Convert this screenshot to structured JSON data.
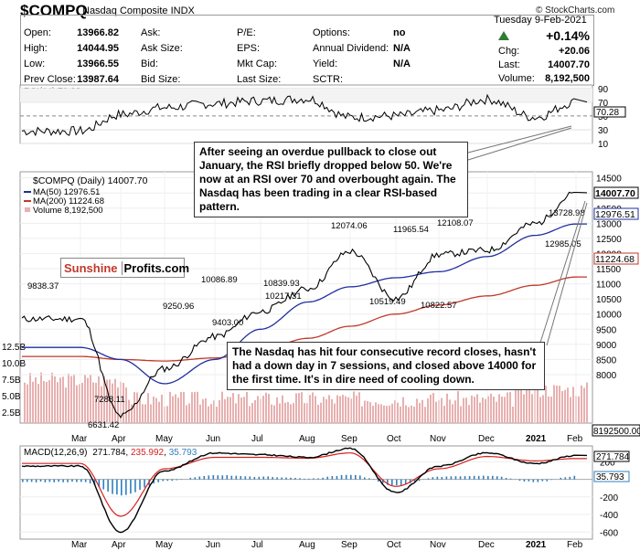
{
  "header": {
    "symbol": "$COMPQ",
    "name": "Nasdaq Composite INDX",
    "copyright": "© StockCharts.com",
    "date": "Tuesday  9-Feb-2021"
  },
  "quote": {
    "open_label": "Open:",
    "open": "13966.82",
    "high_label": "High:",
    "high": "14044.95",
    "low_label": "Low:",
    "low": "13966.55",
    "prev_label": "Prev Close:",
    "prev": "13987.64",
    "ask_label": "Ask:",
    "asksize_label": "Ask Size:",
    "bid_label": "Bid:",
    "bidsize_label": "Bid Size:",
    "pe_label": "P/E:",
    "eps_label": "EPS:",
    "mktcap_label": "Mkt Cap:",
    "lastsize_label": "Last Size:",
    "options_label": "Options:",
    "options": "no",
    "div_label": "Annual Dividend:",
    "div": "N/A",
    "yield_label": "Yield:",
    "yield": "N/A",
    "sctr_label": "SCTR:",
    "pct": "+0.14%",
    "chg_label": "Chg:",
    "chg": "+20.06",
    "last_label": "Last:",
    "last": "14007.70",
    "vol_label": "Volume:",
    "volume": "8,192,500"
  },
  "annotations": {
    "rsi_note": "After seeing an overdue pullback to close out January, the RSI briefly dropped below 50. We're now at an RSI over 70 and overbought again. The Nasdaq has been trading in a clear RSI-based pattern.",
    "price_note": "The Nasdaq has hit four consecutive record closes, hasn't had a down day in 7 sessions, and closed above 14000 for the first time. It's in dire need of cooling down.",
    "logo_a": "Sunshine",
    "logo_b": "Profits.com"
  },
  "colors": {
    "price": "#000000",
    "ma50": "#1f2fa0",
    "ma200": "#c0392b",
    "rsi": "#000000",
    "macd": "#000000",
    "signal": "#d62020",
    "histogram": "#2f7fbf",
    "volume": "#e8b0b0",
    "up_arrow": "#2e7d32"
  },
  "chart_data": [
    {
      "type": "line",
      "title": "RSI(14) 70.28",
      "x": [
        "Mar",
        "Apr",
        "May",
        "Jun",
        "Jul",
        "Aug",
        "Sep",
        "Oct",
        "Nov",
        "Dec",
        "2021",
        "Feb"
      ],
      "series": [
        {
          "name": "RSI(14)",
          "values": [
            28,
            52,
            62,
            68,
            72,
            75,
            48,
            50,
            58,
            74,
            48,
            70.28
          ]
        }
      ],
      "yticks": [
        10,
        30,
        50,
        70,
        90
      ],
      "ylim": [
        10,
        95
      ],
      "last_value": "70.28"
    },
    {
      "type": "line",
      "title": "$COMPQ (Daily) 14007.70",
      "x": [
        "Mar",
        "Apr",
        "May",
        "Jun",
        "Jul",
        "Aug",
        "Sep",
        "Oct",
        "Nov",
        "Dec",
        "2021",
        "Feb"
      ],
      "series": [
        {
          "name": "$COMPQ (Daily) 14007.70",
          "values": [
            9838.37,
            6631.42,
            8200,
            9250.96,
            10086.89,
            10839.93,
            12074.06,
            10519.49,
            11965.54,
            12108.07,
            12985.05,
            14007.7
          ]
        },
        {
          "name": "MA(50) 12976.51",
          "values": [
            8900,
            8500,
            7700,
            8500,
            9500,
            10400,
            10900,
            11200,
            11400,
            11900,
            12600,
            12976.51
          ]
        },
        {
          "name": "MA(200) 11224.68",
          "values": [
            8600,
            8500,
            8450,
            8550,
            8800,
            9200,
            9600,
            10000,
            10300,
            10600,
            10950,
            11224.68
          ]
        }
      ],
      "volume": {
        "name": "Volume 8,192,500",
        "yticks": [
          "2.5B",
          "5.0B",
          "7.5B",
          "10.0B",
          "12.5B"
        ]
      },
      "yticks": [
        8000,
        8500,
        9000,
        9500,
        10000,
        10500,
        11000,
        11500,
        12000,
        12500,
        13000,
        13500,
        14000,
        14500
      ],
      "ylim": [
        6400,
        14700
      ],
      "price_labels": [
        "9838.37",
        "6631.42",
        "7288.11",
        "9250.96",
        "9403.00",
        "10086.89",
        "10839.93",
        "10217.31",
        "12074.06",
        "10519.49",
        "11965.54",
        "10822.57",
        "12108.07",
        "13728.98",
        "12985.05"
      ],
      "last_labels": {
        "price": "14007.70",
        "ma50": "12976.51",
        "ma200": "11224.68",
        "volume": "8192500.00"
      }
    },
    {
      "type": "line",
      "title": "MACD(12,26,9) 271.784, 235.992, 35.793",
      "x": [
        "Mar",
        "Apr",
        "May",
        "Jun",
        "Jul",
        "Aug",
        "Sep",
        "Oct",
        "Nov",
        "Dec",
        "2021",
        "Feb"
      ],
      "series": [
        {
          "name": "MACD(12,26,9)",
          "values": [
            150,
            -600,
            100,
            300,
            280,
            250,
            350,
            -150,
            150,
            300,
            180,
            271.784
          ]
        },
        {
          "name": "signal",
          "values": [
            180,
            -420,
            120,
            250,
            250,
            240,
            300,
            -80,
            120,
            260,
            210,
            235.992
          ]
        },
        {
          "name": "histogram",
          "values": [
            -30,
            -180,
            -20,
            50,
            30,
            10,
            50,
            -70,
            30,
            40,
            -30,
            35.793
          ]
        }
      ],
      "yticks": [
        -600,
        -400,
        -200,
        200
      ],
      "ylim": [
        -680,
        380
      ],
      "last_labels": {
        "macd": "271.784",
        "histogram": "35.793"
      }
    }
  ]
}
